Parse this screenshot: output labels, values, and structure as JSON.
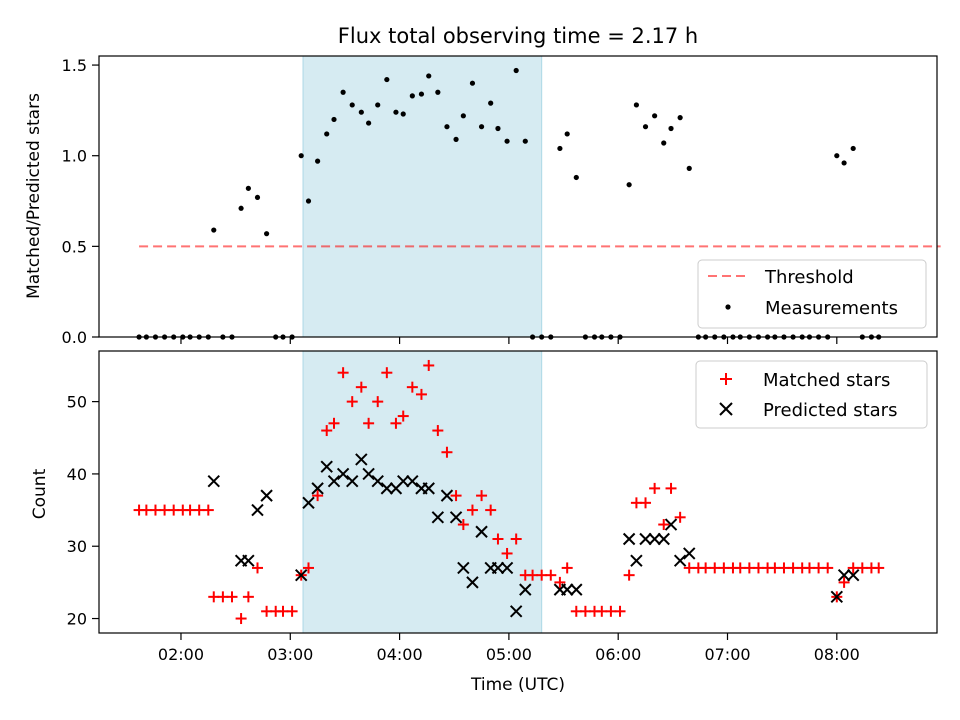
{
  "chart_data": [
    {
      "type": "scatter",
      "title": "Flux total observing time = 2.17 h",
      "ylabel": "Matched/Predicted stars",
      "xlabel": "",
      "ylim": [
        0,
        1.55
      ],
      "xlim": [
        "01:15",
        "08:55"
      ],
      "x_ticks": [
        "02:00",
        "03:00",
        "04:00",
        "05:00",
        "06:00",
        "07:00",
        "08:00"
      ],
      "y_ticks": [
        "0.0",
        "0.5",
        "1.0",
        "1.5"
      ],
      "grid": false,
      "legend_position": "lower-right",
      "highlight_span": {
        "start": "03:07",
        "end": "05:18",
        "color": "#add8e6"
      },
      "threshold": {
        "name": "Threshold",
        "value": 0.5,
        "x_start": "01:37",
        "x_end": "08:57",
        "color": "#ff0000",
        "style": "dashed"
      },
      "series": [
        {
          "name": "Measurements",
          "color": "#000000",
          "marker": "dot",
          "points": [
            [
              "01:37",
              0
            ],
            [
              "01:41",
              0
            ],
            [
              "01:46",
              0
            ],
            [
              "01:51",
              0
            ],
            [
              "01:56",
              0
            ],
            [
              "02:01",
              0
            ],
            [
              "02:05",
              0
            ],
            [
              "02:10",
              0
            ],
            [
              "02:15",
              0
            ],
            [
              "02:18",
              0.59
            ],
            [
              "02:23",
              0
            ],
            [
              "02:28",
              0
            ],
            [
              "02:33",
              0.71
            ],
            [
              "02:37",
              0.82
            ],
            [
              "02:42",
              0.77
            ],
            [
              "02:47",
              0.57
            ],
            [
              "02:52",
              0
            ],
            [
              "02:56",
              0
            ],
            [
              "03:01",
              0
            ],
            [
              "03:06",
              1.0
            ],
            [
              "03:10",
              0.75
            ],
            [
              "03:15",
              0.97
            ],
            [
              "03:20",
              1.12
            ],
            [
              "03:24",
              1.2
            ],
            [
              "03:29",
              1.35
            ],
            [
              "03:34",
              1.28
            ],
            [
              "03:39",
              1.24
            ],
            [
              "03:43",
              1.18
            ],
            [
              "03:48",
              1.28
            ],
            [
              "03:53",
              1.42
            ],
            [
              "03:58",
              1.24
            ],
            [
              "04:02",
              1.23
            ],
            [
              "04:07",
              1.33
            ],
            [
              "04:12",
              1.34
            ],
            [
              "04:16",
              1.44
            ],
            [
              "04:21",
              1.35
            ],
            [
              "04:26",
              1.16
            ],
            [
              "04:31",
              1.09
            ],
            [
              "04:35",
              1.22
            ],
            [
              "04:40",
              1.4
            ],
            [
              "04:45",
              1.16
            ],
            [
              "04:50",
              1.29
            ],
            [
              "04:54",
              1.15
            ],
            [
              "04:59",
              1.08
            ],
            [
              "05:04",
              1.47
            ],
            [
              "05:09",
              1.08
            ],
            [
              "05:13",
              0
            ],
            [
              "05:18",
              0
            ],
            [
              "05:23",
              0
            ],
            [
              "05:28",
              1.04
            ],
            [
              "05:32",
              1.12
            ],
            [
              "05:37",
              0.88
            ],
            [
              "05:42",
              0
            ],
            [
              "05:47",
              0
            ],
            [
              "05:51",
              0
            ],
            [
              "05:56",
              0
            ],
            [
              "06:01",
              0
            ],
            [
              "06:06",
              0.84
            ],
            [
              "06:10",
              1.28
            ],
            [
              "06:15",
              1.16
            ],
            [
              "06:20",
              1.22
            ],
            [
              "06:25",
              1.07
            ],
            [
              "06:29",
              1.15
            ],
            [
              "06:34",
              1.21
            ],
            [
              "06:39",
              0.93
            ],
            [
              "06:44",
              0
            ],
            [
              "06:48",
              0
            ],
            [
              "06:53",
              0
            ],
            [
              "06:58",
              0
            ],
            [
              "07:03",
              0
            ],
            [
              "07:07",
              0
            ],
            [
              "07:12",
              0
            ],
            [
              "07:17",
              0
            ],
            [
              "07:22",
              0
            ],
            [
              "07:26",
              0
            ],
            [
              "07:31",
              0
            ],
            [
              "07:36",
              0
            ],
            [
              "07:41",
              0
            ],
            [
              "07:45",
              0
            ],
            [
              "07:50",
              0
            ],
            [
              "07:55",
              0
            ],
            [
              "08:00",
              1.0
            ],
            [
              "08:04",
              0.96
            ],
            [
              "08:09",
              1.04
            ],
            [
              "08:14",
              0
            ],
            [
              "08:19",
              0
            ],
            [
              "08:23",
              0
            ]
          ]
        }
      ],
      "legend": [
        "Threshold",
        "Measurements"
      ]
    },
    {
      "type": "scatter",
      "title": "",
      "ylabel": "Count",
      "xlabel": "Time (UTC)",
      "ylim": [
        18,
        57
      ],
      "xlim": [
        "01:15",
        "08:55"
      ],
      "x_ticks": [
        "02:00",
        "03:00",
        "04:00",
        "05:00",
        "06:00",
        "07:00",
        "08:00"
      ],
      "y_ticks": [
        "20",
        "30",
        "40",
        "50"
      ],
      "grid": false,
      "legend_position": "upper-right",
      "highlight_span": {
        "start": "03:07",
        "end": "05:18",
        "color": "#add8e6"
      },
      "series": [
        {
          "name": "Matched stars",
          "color": "#ff0000",
          "marker": "plus",
          "points": [
            [
              "01:37",
              35
            ],
            [
              "01:41",
              35
            ],
            [
              "01:46",
              35
            ],
            [
              "01:51",
              35
            ],
            [
              "01:56",
              35
            ],
            [
              "02:01",
              35
            ],
            [
              "02:05",
              35
            ],
            [
              "02:10",
              35
            ],
            [
              "02:15",
              35
            ],
            [
              "02:18",
              23
            ],
            [
              "02:23",
              23
            ],
            [
              "02:28",
              23
            ],
            [
              "02:33",
              20
            ],
            [
              "02:37",
              23
            ],
            [
              "02:42",
              27
            ],
            [
              "02:47",
              21
            ],
            [
              "02:52",
              21
            ],
            [
              "02:56",
              21
            ],
            [
              "03:01",
              21
            ],
            [
              "03:06",
              26
            ],
            [
              "03:10",
              27
            ],
            [
              "03:15",
              37
            ],
            [
              "03:20",
              46
            ],
            [
              "03:24",
              47
            ],
            [
              "03:29",
              54
            ],
            [
              "03:34",
              50
            ],
            [
              "03:39",
              52
            ],
            [
              "03:43",
              47
            ],
            [
              "03:48",
              50
            ],
            [
              "03:53",
              54
            ],
            [
              "03:58",
              47
            ],
            [
              "04:02",
              48
            ],
            [
              "04:07",
              52
            ],
            [
              "04:12",
              51
            ],
            [
              "04:16",
              55
            ],
            [
              "04:21",
              46
            ],
            [
              "04:26",
              43
            ],
            [
              "04:31",
              37
            ],
            [
              "04:35",
              33
            ],
            [
              "04:40",
              35
            ],
            [
              "04:45",
              37
            ],
            [
              "04:50",
              35
            ],
            [
              "04:54",
              31
            ],
            [
              "04:59",
              29
            ],
            [
              "05:04",
              31
            ],
            [
              "05:09",
              26
            ],
            [
              "05:13",
              26
            ],
            [
              "05:18",
              26
            ],
            [
              "05:23",
              26
            ],
            [
              "05:28",
              25
            ],
            [
              "05:32",
              27
            ],
            [
              "05:37",
              21
            ],
            [
              "05:42",
              21
            ],
            [
              "05:47",
              21
            ],
            [
              "05:51",
              21
            ],
            [
              "05:56",
              21
            ],
            [
              "06:01",
              21
            ],
            [
              "06:06",
              26
            ],
            [
              "06:10",
              36
            ],
            [
              "06:15",
              36
            ],
            [
              "06:20",
              38
            ],
            [
              "06:25",
              33
            ],
            [
              "06:29",
              38
            ],
            [
              "06:34",
              34
            ],
            [
              "06:39",
              27
            ],
            [
              "06:44",
              27
            ],
            [
              "06:48",
              27
            ],
            [
              "06:53",
              27
            ],
            [
              "06:58",
              27
            ],
            [
              "07:03",
              27
            ],
            [
              "07:07",
              27
            ],
            [
              "07:12",
              27
            ],
            [
              "07:17",
              27
            ],
            [
              "07:22",
              27
            ],
            [
              "07:26",
              27
            ],
            [
              "07:31",
              27
            ],
            [
              "07:36",
              27
            ],
            [
              "07:41",
              27
            ],
            [
              "07:45",
              27
            ],
            [
              "07:50",
              27
            ],
            [
              "07:55",
              27
            ],
            [
              "08:00",
              23
            ],
            [
              "08:04",
              25
            ],
            [
              "08:09",
              27
            ],
            [
              "08:14",
              27
            ],
            [
              "08:19",
              27
            ],
            [
              "08:23",
              27
            ]
          ]
        },
        {
          "name": "Predicted stars",
          "color": "#000000",
          "marker": "x",
          "points": [
            [
              "02:18",
              39
            ],
            [
              "02:33",
              28
            ],
            [
              "02:37",
              28
            ],
            [
              "02:42",
              35
            ],
            [
              "02:47",
              37
            ],
            [
              "03:06",
              26
            ],
            [
              "03:10",
              36
            ],
            [
              "03:15",
              38
            ],
            [
              "03:20",
              41
            ],
            [
              "03:24",
              39
            ],
            [
              "03:29",
              40
            ],
            [
              "03:34",
              39
            ],
            [
              "03:39",
              42
            ],
            [
              "03:43",
              40
            ],
            [
              "03:48",
              39
            ],
            [
              "03:53",
              38
            ],
            [
              "03:58",
              38
            ],
            [
              "04:02",
              39
            ],
            [
              "04:07",
              39
            ],
            [
              "04:12",
              38
            ],
            [
              "04:16",
              38
            ],
            [
              "04:21",
              34
            ],
            [
              "04:26",
              37
            ],
            [
              "04:31",
              34
            ],
            [
              "04:35",
              27
            ],
            [
              "04:40",
              25
            ],
            [
              "04:45",
              32
            ],
            [
              "04:50",
              27
            ],
            [
              "04:54",
              27
            ],
            [
              "04:59",
              27
            ],
            [
              "05:04",
              21
            ],
            [
              "05:09",
              24
            ],
            [
              "05:28",
              24
            ],
            [
              "05:32",
              24
            ],
            [
              "05:37",
              24
            ],
            [
              "06:06",
              31
            ],
            [
              "06:10",
              28
            ],
            [
              "06:15",
              31
            ],
            [
              "06:20",
              31
            ],
            [
              "06:25",
              31
            ],
            [
              "06:29",
              33
            ],
            [
              "06:34",
              28
            ],
            [
              "06:39",
              29
            ],
            [
              "08:00",
              23
            ],
            [
              "08:04",
              26
            ],
            [
              "08:09",
              26
            ]
          ]
        }
      ],
      "legend": [
        "Matched stars",
        "Predicted stars"
      ]
    }
  ]
}
